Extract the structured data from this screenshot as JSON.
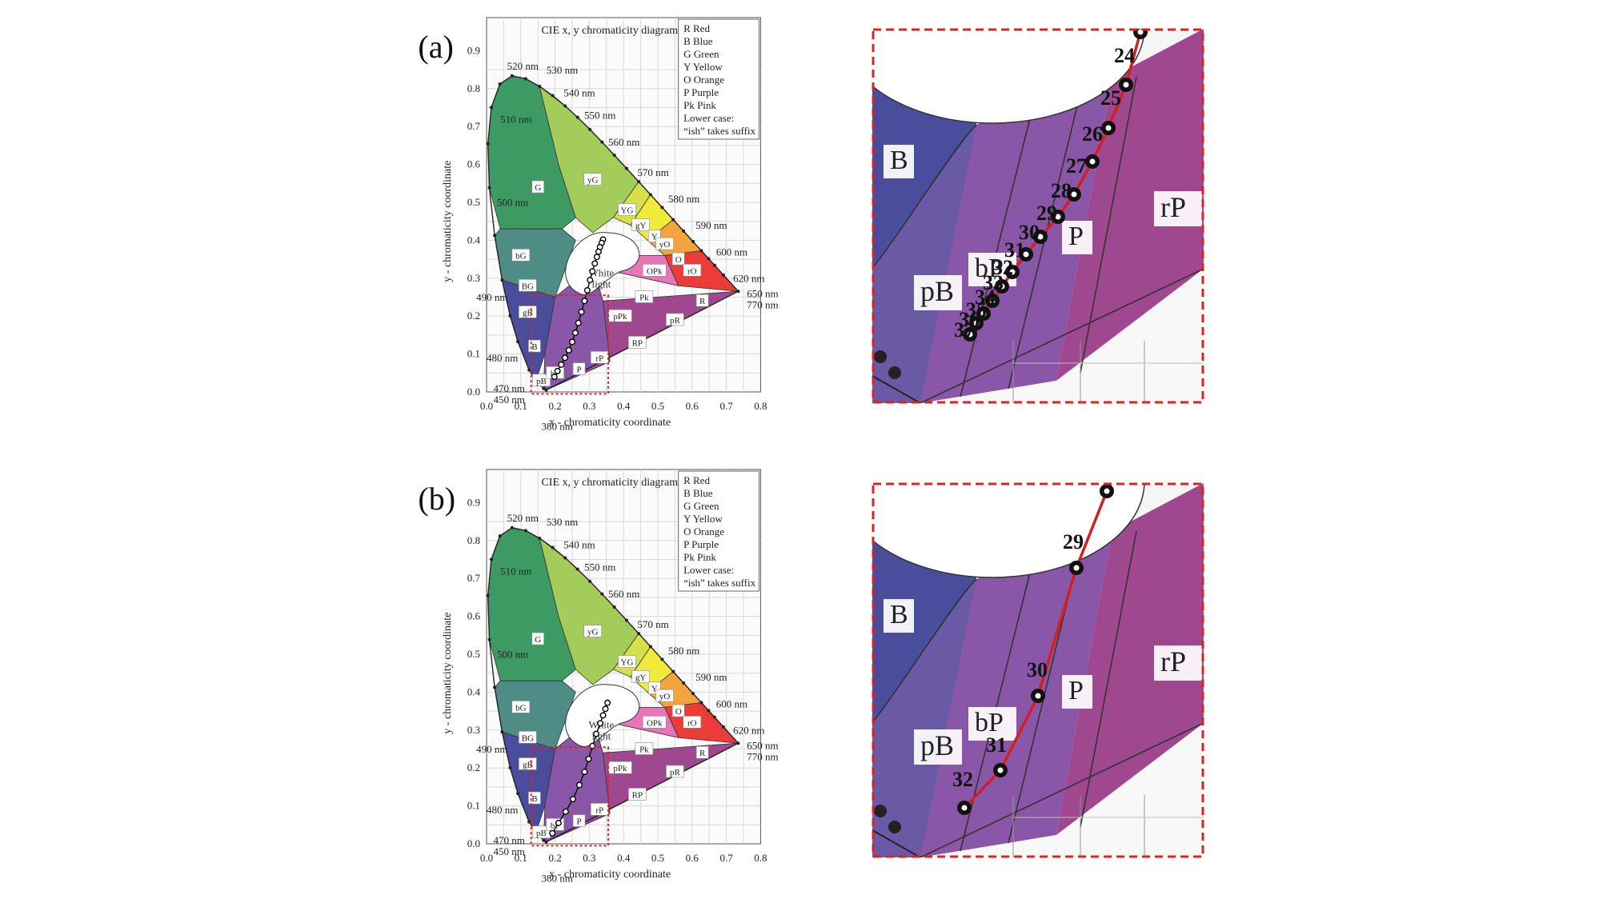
{
  "figure": {
    "panels": [
      {
        "tag": "(a)",
        "diagram_title": "CIE x, y chromaticity diagram",
        "inset_points": [
          {
            "label": "24"
          },
          {
            "label": "25"
          },
          {
            "label": "26"
          },
          {
            "label": "27"
          },
          {
            "label": "28"
          },
          {
            "label": "29"
          },
          {
            "label": "30"
          },
          {
            "label": "31"
          },
          {
            "label": "32"
          },
          {
            "label": "33"
          },
          {
            "label": "34"
          },
          {
            "label": "35"
          },
          {
            "label": "36"
          },
          {
            "label": "37"
          }
        ]
      },
      {
        "tag": "(b)",
        "diagram_title": "CIE x, y chromaticity diagram",
        "inset_points": [
          {
            "label": "29"
          },
          {
            "label": "30"
          },
          {
            "label": "31"
          },
          {
            "label": "32"
          }
        ]
      }
    ],
    "legend": [
      "R    Red",
      "B    Blue",
      "G    Green",
      "Y     Yellow",
      "O    Orange",
      "P    Purple",
      "Pk   Pink",
      "Lower case:",
      "“ish” takes suffix"
    ],
    "x_axis_label": "x - chromaticity coordinate",
    "y_axis_label": "y - chromaticity coordinate",
    "x_ticks": [
      "0.0",
      "0.1",
      "0.2",
      "0.3",
      "0.4",
      "0.5",
      "0.6",
      "0.7",
      "0.8"
    ],
    "y_ticks": [
      "0.0",
      "0.1",
      "0.2",
      "0.3",
      "0.4",
      "0.5",
      "0.6",
      "0.7",
      "0.8",
      "0.9"
    ],
    "wavelength_labels": [
      "520 nm",
      "530 nm",
      "540 nm",
      "550 nm",
      "560 nm",
      "570 nm",
      "580 nm",
      "590 nm",
      "600 nm",
      "620 nm",
      "650 nm",
      "770 nm",
      "510 nm",
      "500 nm",
      "490 nm",
      "480 nm",
      "470 nm",
      "450 nm",
      "380 nm"
    ],
    "region_labels": [
      "G",
      "yG",
      "YG",
      "gY",
      "Y",
      "yO",
      "O",
      "rO",
      "R",
      "bG",
      "BG",
      "gB",
      "B",
      "pB",
      "bP",
      "P",
      "rP",
      "RP",
      "pR",
      "pPk",
      "Pk",
      "OPk"
    ],
    "white_light_label": [
      "White",
      "light"
    ],
    "inset_region_labels": [
      "B",
      "pB",
      "bP",
      "P",
      "rP"
    ],
    "colors": {
      "green": "#3e9a63",
      "yellow_green": "#a3cc5b",
      "yellow": "#f1ea3b",
      "orange": "#f4a43e",
      "red": "#ec3c38",
      "blue_green": "#4e8c86",
      "blue": "#4a4d9c",
      "purple": "#8a56a8",
      "red_purple": "#a0488f",
      "pink": "#e676b8",
      "trace": "#d51f1f",
      "dashed_box": "#e02020"
    }
  }
}
